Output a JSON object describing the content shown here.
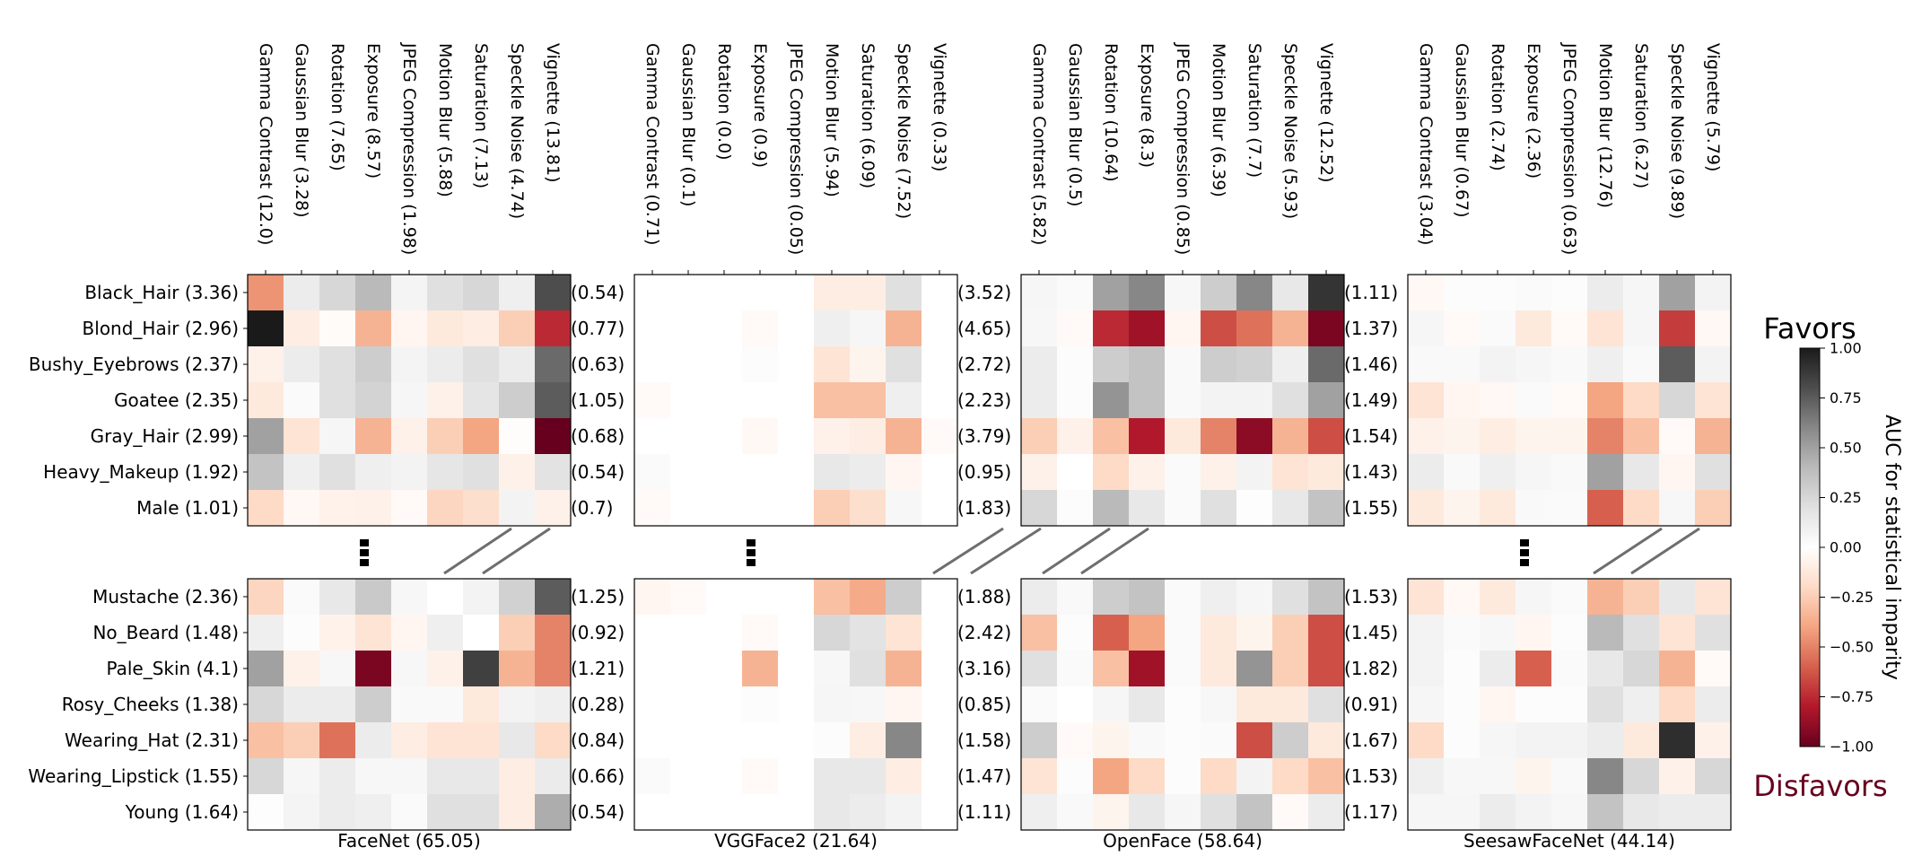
{
  "chart_data": {
    "type": "heatmap",
    "colorbar": {
      "label": "AUC for statistical imparity",
      "top_label": "Favors",
      "bottom_label": "Disfavors",
      "ticks": [
        "1.00",
        "0.75",
        "0.50",
        "0.25",
        "0.00",
        "−0.25",
        "−0.50",
        "−0.75",
        "−1.00"
      ],
      "range": [
        -1,
        1
      ],
      "top_color": "#000000",
      "bottom_color": "#67001f"
    },
    "rows_top": [
      "Black_Hair",
      "Blond_Hair",
      "Bushy_Eyebrows",
      "Goatee",
      "Gray_Hair",
      "Heavy_Makeup",
      "Male"
    ],
    "rows_bottom": [
      "Mustache",
      "No_Beard",
      "Pale_Skin",
      "Rosy_Cheeks",
      "Wearing_Hat",
      "Wearing_Lipstick",
      "Young"
    ],
    "row_labels_top": [
      "Black_Hair (3.36)",
      "Blond_Hair (2.96)",
      "Bushy_Eyebrows (2.37)",
      "Goatee (2.35)",
      "Gray_Hair (2.99)",
      "Heavy_Makeup (1.92)",
      "Male (1.01)"
    ],
    "row_labels_bottom": [
      "Mustache (2.36)",
      "No_Beard (1.48)",
      "Pale_Skin (4.1)",
      "Rosy_Cheeks (1.38)",
      "Wearing_Hat (2.31)",
      "Wearing_Lipstick (1.55)",
      "Young (1.64)"
    ],
    "columns": [
      "Gamma Contrast",
      "Gaussian Blur",
      "Rotation",
      "Exposure",
      "JPEG Compression",
      "Motion Blur",
      "Saturation",
      "Speckle Noise",
      "Vignette"
    ],
    "panels": [
      {
        "title": "FaceNet (65.05)",
        "col_labels": [
          "Gamma Contrast (12.0)",
          "Gaussian Blur (3.28)",
          "Rotation (7.65)",
          "Exposure (8.57)",
          "JPEG Compression (1.98)",
          "Motion Blur (5.88)",
          "Saturation (7.13)",
          "Speckle Noise (4.74)",
          "Vignette (13.81)"
        ],
        "values_top": [
          [
            -0.45,
            0.12,
            0.25,
            0.4,
            0.07,
            0.2,
            0.25,
            0.1,
            0.8
          ],
          [
            1.0,
            -0.1,
            -0.02,
            -0.35,
            -0.05,
            -0.12,
            -0.1,
            -0.25,
            -0.75
          ],
          [
            -0.08,
            0.12,
            0.2,
            0.3,
            0.07,
            0.12,
            0.2,
            0.12,
            0.7
          ],
          [
            -0.12,
            0.03,
            0.2,
            0.27,
            0.06,
            -0.08,
            0.17,
            0.3,
            0.75
          ],
          [
            0.5,
            -0.15,
            0.06,
            -0.35,
            -0.08,
            -0.25,
            -0.4,
            -0.01,
            -1.0
          ],
          [
            0.35,
            0.1,
            0.2,
            0.1,
            0.08,
            0.16,
            0.2,
            -0.08,
            0.18
          ],
          [
            -0.2,
            -0.04,
            -0.07,
            -0.08,
            -0.03,
            -0.22,
            -0.18,
            0.08,
            -0.08
          ]
        ],
        "values_bottom": [
          [
            -0.22,
            0.03,
            0.15,
            0.32,
            0.05,
            0.0,
            0.08,
            0.28,
            0.75
          ],
          [
            0.1,
            0.02,
            -0.07,
            -0.15,
            -0.05,
            0.1,
            0.0,
            -0.25,
            -0.5
          ],
          [
            0.5,
            -0.08,
            0.05,
            -0.95,
            0.05,
            -0.08,
            0.85,
            -0.35,
            -0.5
          ],
          [
            0.25,
            0.12,
            0.12,
            0.3,
            0.04,
            0.04,
            -0.12,
            0.08,
            0.1
          ],
          [
            -0.3,
            -0.25,
            -0.55,
            0.12,
            -0.1,
            -0.15,
            -0.15,
            0.15,
            -0.2
          ],
          [
            0.25,
            0.06,
            0.12,
            0.05,
            0.05,
            0.15,
            0.15,
            -0.1,
            0.13
          ],
          [
            0.01,
            0.07,
            0.12,
            0.1,
            0.03,
            0.2,
            0.2,
            -0.1,
            0.45
          ]
        ]
      },
      {
        "title": "VGGFace2 (21.64)",
        "col_labels": [
          "Gamma Contrast (0.71)",
          "Gaussian Blur (0.1)",
          "Rotation (0.0)",
          "Exposure (0.9)",
          "JPEG Compression (0.05)",
          "Motion Blur (5.94)",
          "Saturation (6.09)",
          "Speckle Noise (7.52)",
          "Vignette (0.33)"
        ],
        "values_top": [
          [
            0.0,
            0.0,
            0.0,
            0.0,
            0.0,
            -0.1,
            -0.1,
            0.2,
            0.0
          ],
          [
            0.0,
            0.0,
            0.0,
            -0.03,
            0.0,
            0.1,
            0.06,
            -0.35,
            0.0
          ],
          [
            0.0,
            0.0,
            0.0,
            0.02,
            0.0,
            -0.15,
            -0.06,
            0.2,
            0.0
          ],
          [
            -0.03,
            0.0,
            0.0,
            0.0,
            0.0,
            -0.3,
            -0.3,
            0.1,
            0.0
          ],
          [
            0.0,
            0.0,
            0.0,
            -0.04,
            0.0,
            -0.08,
            -0.1,
            -0.35,
            -0.03
          ],
          [
            0.03,
            0.0,
            0.0,
            0.0,
            0.0,
            0.15,
            0.12,
            -0.05,
            0.0
          ],
          [
            -0.03,
            0.0,
            0.0,
            0.0,
            0.0,
            -0.25,
            -0.18,
            0.05,
            0.0
          ]
        ],
        "values_bottom": [
          [
            -0.05,
            -0.03,
            0.0,
            0.0,
            0.0,
            -0.3,
            -0.38,
            0.3,
            0.0
          ],
          [
            0.0,
            0.0,
            0.0,
            -0.03,
            0.0,
            0.25,
            0.18,
            -0.15,
            0.0
          ],
          [
            0.0,
            0.0,
            0.0,
            -0.35,
            0.0,
            0.05,
            0.2,
            -0.35,
            0.0
          ],
          [
            0.0,
            0.0,
            0.0,
            0.02,
            0.0,
            0.06,
            0.05,
            -0.05,
            0.0
          ],
          [
            0.0,
            0.0,
            0.0,
            0.0,
            0.0,
            0.02,
            -0.1,
            0.6,
            0.0
          ],
          [
            0.03,
            0.0,
            0.0,
            -0.03,
            0.0,
            0.15,
            0.15,
            -0.1,
            0.0
          ],
          [
            0.0,
            0.0,
            0.0,
            0.0,
            0.0,
            0.15,
            0.12,
            0.08,
            0.0
          ]
        ]
      },
      {
        "title": "OpenFace (58.64)",
        "col_labels": [
          "Gamma Contrast (5.82)",
          "Gaussian Blur (0.5)",
          "Rotation (10.64)",
          "Exposure (8.3)",
          "JPEG Compression (0.85)",
          "Motion Blur (6.39)",
          "Saturation (7.7)",
          "Speckle Noise (5.93)",
          "Vignette (12.52)"
        ],
        "values_top": [
          [
            0.06,
            0.03,
            0.5,
            0.6,
            0.05,
            0.3,
            0.6,
            0.15,
            0.9
          ],
          [
            0.05,
            -0.03,
            -0.75,
            -0.85,
            -0.05,
            -0.65,
            -0.55,
            -0.35,
            -0.95
          ],
          [
            0.12,
            0.02,
            0.3,
            0.35,
            0.04,
            0.3,
            0.28,
            0.1,
            0.7
          ],
          [
            0.12,
            0.02,
            0.55,
            0.35,
            0.04,
            0.08,
            0.08,
            0.2,
            0.5
          ],
          [
            -0.25,
            -0.08,
            -0.3,
            -0.8,
            -0.12,
            -0.5,
            -0.9,
            -0.35,
            -0.65
          ],
          [
            -0.08,
            0.0,
            -0.2,
            -0.08,
            0.03,
            -0.08,
            0.08,
            -0.15,
            -0.12
          ],
          [
            0.25,
            0.02,
            0.4,
            0.15,
            0.03,
            0.2,
            0.01,
            0.15,
            0.35
          ]
        ],
        "values_bottom": [
          [
            0.12,
            0.04,
            0.3,
            0.35,
            0.03,
            0.1,
            0.06,
            0.2,
            0.35
          ],
          [
            -0.3,
            0.02,
            -0.6,
            -0.4,
            0.03,
            -0.12,
            -0.06,
            -0.25,
            -0.65
          ],
          [
            0.2,
            0.03,
            -0.3,
            -0.85,
            0.03,
            -0.12,
            0.55,
            -0.25,
            -0.65
          ],
          [
            0.03,
            0.0,
            0.06,
            0.15,
            0.02,
            0.05,
            -0.12,
            -0.12,
            0.2
          ],
          [
            0.3,
            -0.03,
            -0.06,
            0.04,
            0.02,
            0.03,
            -0.65,
            0.3,
            -0.12
          ],
          [
            -0.15,
            0.02,
            -0.4,
            -0.2,
            0.02,
            -0.2,
            0.08,
            -0.2,
            -0.3
          ],
          [
            0.1,
            0.04,
            -0.06,
            0.15,
            0.06,
            0.2,
            0.35,
            -0.03,
            0.12
          ]
        ]
      },
      {
        "title": "SeesawFaceNet (44.14)",
        "col_labels": [
          "Gamma Contrast (3.04)",
          "Gaussian Blur (0.67)",
          "Rotation (2.74)",
          "Exposure (2.36)",
          "JPEG Compression (0.63)",
          "Motion Blur (12.76)",
          "Saturation (6.27)",
          "Speckle Noise (9.89)",
          "Vignette (5.79)"
        ],
        "values_top": [
          [
            -0.04,
            0.02,
            0.02,
            0.03,
            0.02,
            0.12,
            0.06,
            0.5,
            0.08
          ],
          [
            0.06,
            -0.03,
            0.03,
            -0.12,
            -0.03,
            -0.15,
            0.06,
            -0.7,
            -0.04
          ],
          [
            0.04,
            0.04,
            0.08,
            0.06,
            0.04,
            0.1,
            0.04,
            0.75,
            0.08
          ],
          [
            -0.15,
            -0.05,
            -0.04,
            0.03,
            -0.03,
            -0.4,
            -0.2,
            0.25,
            -0.15
          ],
          [
            -0.08,
            -0.06,
            -0.1,
            -0.06,
            -0.06,
            -0.5,
            -0.3,
            -0.03,
            -0.35
          ],
          [
            0.12,
            0.04,
            0.1,
            0.06,
            0.04,
            0.5,
            0.15,
            -0.05,
            0.2
          ],
          [
            -0.12,
            -0.06,
            -0.12,
            0.04,
            0.03,
            -0.6,
            -0.2,
            0.05,
            -0.25
          ]
        ],
        "values_bottom": [
          [
            -0.15,
            -0.04,
            -0.12,
            0.06,
            0.03,
            -0.35,
            -0.25,
            0.15,
            -0.15
          ],
          [
            0.08,
            0.03,
            0.05,
            -0.05,
            0.02,
            0.4,
            0.2,
            -0.15,
            0.2
          ],
          [
            0.08,
            0.02,
            0.12,
            -0.6,
            0.03,
            0.15,
            0.25,
            -0.35,
            -0.03
          ],
          [
            0.06,
            0.02,
            -0.05,
            0.02,
            0.02,
            0.2,
            0.1,
            -0.2,
            0.12
          ],
          [
            -0.2,
            0.02,
            0.06,
            0.08,
            0.08,
            0.12,
            -0.12,
            0.92,
            -0.08
          ],
          [
            0.1,
            0.05,
            0.05,
            -0.06,
            0.04,
            0.6,
            0.25,
            -0.08,
            0.25
          ],
          [
            0.06,
            0.06,
            0.12,
            0.08,
            0.05,
            0.35,
            0.15,
            0.12,
            0.12
          ]
        ]
      }
    ],
    "row_suffix_values": [
      {
        "top": [
          "(0.54)",
          "(0.77)",
          "(0.63)",
          "(1.05)",
          "(0.68)",
          "(0.54)",
          "(0.7)"
        ],
        "bottom": [
          "(1.25)",
          "(0.92)",
          "(1.21)",
          "(0.28)",
          "(0.84)",
          "(0.66)",
          "(0.54)"
        ]
      },
      {
        "top": [
          "(3.52)",
          "(4.65)",
          "(2.72)",
          "(2.23)",
          "(3.79)",
          "(0.95)",
          "(1.83)"
        ],
        "bottom": [
          "(1.88)",
          "(2.42)",
          "(3.16)",
          "(0.85)",
          "(1.58)",
          "(1.47)",
          "(1.11)"
        ]
      },
      {
        "top": [
          "(1.11)",
          "(1.37)",
          "(1.46)",
          "(1.49)",
          "(1.54)",
          "(1.43)",
          "(1.55)"
        ],
        "bottom": [
          "(1.53)",
          "(1.45)",
          "(1.82)",
          "(0.91)",
          "(1.67)",
          "(1.53)",
          "(1.17)"
        ]
      }
    ]
  }
}
